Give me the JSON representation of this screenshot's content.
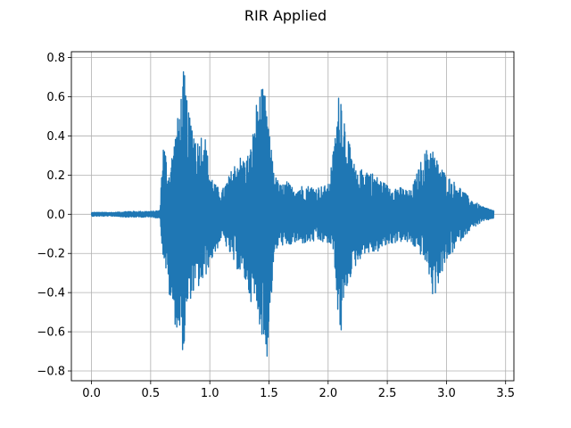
{
  "chart_data": {
    "type": "line",
    "title": "RIR Applied",
    "xlabel": "",
    "ylabel": "",
    "xlim": [
      -0.17,
      3.57
    ],
    "ylim": [
      -0.85,
      0.83
    ],
    "grid": true,
    "legend": "none",
    "xticks": [
      0.0,
      0.5,
      1.0,
      1.5,
      2.0,
      2.5,
      3.0,
      3.5
    ],
    "xtick_labels": [
      "0.0",
      "0.5",
      "1.0",
      "1.5",
      "2.0",
      "2.5",
      "3.0",
      "3.5"
    ],
    "yticks": [
      -0.8,
      -0.6,
      -0.4,
      -0.2,
      0.0,
      0.2,
      0.4,
      0.6,
      0.8
    ],
    "ytick_labels": [
      "−0.8",
      "−0.6",
      "−0.4",
      "−0.2",
      "0.0",
      "0.2",
      "0.4",
      "0.6",
      "0.8"
    ],
    "series": [
      {
        "color": "#1f77b4",
        "envelope_x": [
          0.0,
          0.1,
          0.2,
          0.3,
          0.4,
          0.5,
          0.58,
          0.6,
          0.62,
          0.65,
          0.7,
          0.75,
          0.78,
          0.8,
          0.82,
          0.85,
          0.9,
          0.95,
          1.0,
          1.05,
          1.1,
          1.15,
          1.2,
          1.25,
          1.3,
          1.35,
          1.4,
          1.45,
          1.48,
          1.5,
          1.53,
          1.55,
          1.6,
          1.65,
          1.7,
          1.8,
          1.9,
          2.0,
          2.05,
          2.08,
          2.1,
          2.12,
          2.15,
          2.2,
          2.25,
          2.3,
          2.4,
          2.5,
          2.6,
          2.7,
          2.8,
          2.85,
          2.88,
          2.9,
          2.95,
          3.0,
          3.1,
          3.2,
          3.3,
          3.4
        ],
        "envelope_max": [
          0.01,
          0.01,
          0.01,
          0.015,
          0.015,
          0.015,
          0.02,
          0.36,
          0.35,
          0.2,
          0.38,
          0.58,
          0.75,
          0.64,
          0.52,
          0.48,
          0.38,
          0.45,
          0.22,
          0.15,
          0.12,
          0.18,
          0.25,
          0.3,
          0.28,
          0.35,
          0.6,
          0.65,
          0.58,
          0.42,
          0.3,
          0.2,
          0.15,
          0.17,
          0.14,
          0.15,
          0.14,
          0.15,
          0.35,
          0.55,
          0.69,
          0.6,
          0.45,
          0.3,
          0.2,
          0.25,
          0.2,
          0.15,
          0.14,
          0.12,
          0.3,
          0.35,
          0.36,
          0.3,
          0.25,
          0.2,
          0.15,
          0.08,
          0.04,
          0.02
        ],
        "envelope_min": [
          -0.01,
          -0.01,
          -0.01,
          -0.015,
          -0.015,
          -0.015,
          -0.02,
          -0.2,
          -0.25,
          -0.4,
          -0.55,
          -0.65,
          -0.72,
          -0.6,
          -0.45,
          -0.42,
          -0.38,
          -0.35,
          -0.25,
          -0.2,
          -0.12,
          -0.18,
          -0.25,
          -0.3,
          -0.35,
          -0.45,
          -0.5,
          -0.65,
          -0.77,
          -0.6,
          -0.35,
          -0.2,
          -0.15,
          -0.18,
          -0.15,
          -0.15,
          -0.14,
          -0.15,
          -0.2,
          -0.52,
          -0.62,
          -0.6,
          -0.4,
          -0.3,
          -0.25,
          -0.2,
          -0.2,
          -0.16,
          -0.14,
          -0.15,
          -0.22,
          -0.3,
          -0.42,
          -0.42,
          -0.32,
          -0.25,
          -0.15,
          -0.08,
          -0.04,
          -0.02
        ]
      }
    ]
  }
}
